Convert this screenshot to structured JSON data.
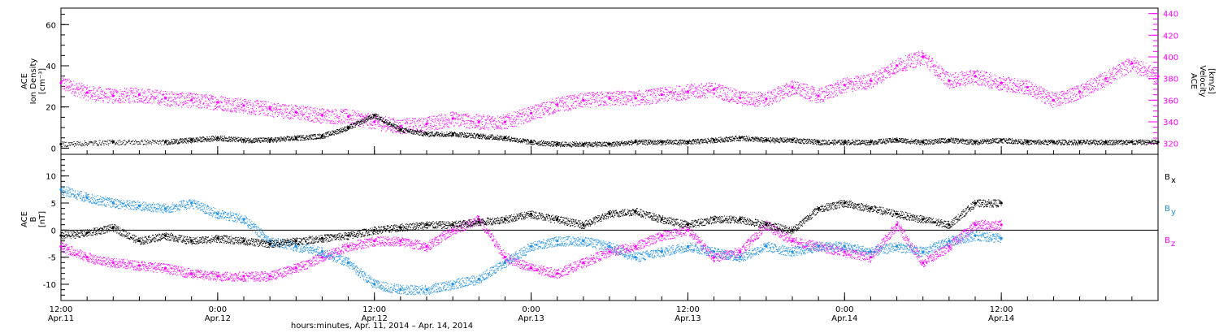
{
  "chart_data": [
    {
      "type": "scatter",
      "panel": "top",
      "ylabel_lines": [
        "ACE",
        "Ion Density",
        "[cm⁻³]"
      ],
      "ylabel2_lines": [
        "ACE",
        "Velocity",
        "[km/s]"
      ],
      "xlim": [
        0,
        84
      ],
      "ylim": [
        -3,
        68
      ],
      "y2lim": [
        310,
        445
      ],
      "yticks": [
        "0",
        "20",
        "40",
        "60"
      ],
      "y2ticks": [
        "320",
        "340",
        "360",
        "380",
        "400",
        "420",
        "440"
      ],
      "series": [
        {
          "color": "#000000",
          "axis": "left",
          "x": [
            0,
            4,
            8,
            10,
            12,
            14,
            16,
            18,
            20,
            22,
            24,
            26,
            28,
            30,
            32,
            34,
            36,
            38,
            40,
            42,
            44,
            46,
            48,
            50,
            52,
            54,
            56,
            58,
            60,
            62,
            64,
            66,
            68,
            70,
            72,
            74,
            76,
            78,
            80,
            82,
            84
          ],
          "values": [
            2,
            3,
            3,
            4,
            5,
            4,
            4,
            5,
            6,
            10,
            16,
            9,
            7,
            7,
            6,
            5,
            3,
            2,
            2,
            2,
            3,
            3,
            3,
            4,
            5,
            4,
            4,
            3,
            3,
            3,
            4,
            3,
            4,
            3,
            4,
            3,
            3,
            3,
            3,
            3,
            3
          ]
        },
        {
          "color": "#ff00ff",
          "axis": "right",
          "x": [
            0,
            2,
            4,
            6,
            8,
            10,
            12,
            14,
            16,
            18,
            20,
            22,
            24,
            26,
            28,
            30,
            32,
            34,
            36,
            38,
            40,
            42,
            44,
            46,
            48,
            50,
            52,
            54,
            56,
            58,
            60,
            62,
            64,
            66,
            68,
            70,
            72,
            74,
            76,
            78,
            80,
            82,
            84
          ],
          "values": [
            376,
            367,
            364,
            365,
            362,
            360,
            358,
            355,
            352,
            349,
            346,
            345,
            340,
            336,
            338,
            343,
            340,
            340,
            348,
            356,
            360,
            362,
            362,
            365,
            368,
            370,
            362,
            361,
            372,
            364,
            374,
            378,
            392,
            400,
            378,
            382,
            376,
            372,
            360,
            368,
            380,
            394,
            382
          ]
        }
      ]
    },
    {
      "type": "scatter",
      "panel": "bottom",
      "ylabel_lines": [
        "ACE",
        "B",
        "[nT]"
      ],
      "xlabel": "hours:minutes, Apr. 11, 2014 – Apr. 14, 2014",
      "xlim": [
        0,
        84
      ],
      "ylim": [
        -13,
        14
      ],
      "yticks": [
        "-10",
        "-5",
        "0",
        "5",
        "10"
      ],
      "xticks": [
        {
          "x": 0,
          "time": "12:00",
          "date": "Apr.11"
        },
        {
          "x": 12,
          "time": "0:00",
          "date": "Apr.12"
        },
        {
          "x": 24,
          "time": "12:00",
          "date": "Apr.12"
        },
        {
          "x": 36,
          "time": "0:00",
          "date": "Apr.13"
        },
        {
          "x": 48,
          "time": "12:00",
          "date": "Apr.13"
        },
        {
          "x": 60,
          "time": "0:00",
          "date": "Apr.14"
        },
        {
          "x": 72,
          "time": "12:00",
          "date": "Apr.14"
        }
      ],
      "legend": [
        {
          "name": "B",
          "sub": "x",
          "color": "#000000"
        },
        {
          "name": "B",
          "sub": "y",
          "color": "#1e90e8"
        },
        {
          "name": "B",
          "sub": "z",
          "color": "#ff00ff"
        }
      ],
      "series": [
        {
          "color": "#000000",
          "x": [
            0,
            2,
            4,
            6,
            8,
            10,
            12,
            14,
            16,
            18,
            20,
            22,
            24,
            26,
            28,
            30,
            32,
            34,
            36,
            38,
            40,
            42,
            44,
            46,
            48,
            50,
            52,
            54,
            56,
            58,
            60,
            62,
            64,
            66,
            68,
            70,
            72
          ],
          "values": [
            -1,
            -0.5,
            0.5,
            -2,
            -1,
            -2,
            -1.5,
            -2,
            -2.5,
            -2,
            -1.5,
            -1,
            0,
            0.5,
            1,
            1,
            1.5,
            2,
            3,
            2,
            1,
            3,
            3.5,
            2,
            1,
            2,
            2,
            1,
            0,
            4,
            5,
            4,
            3,
            2,
            1,
            5,
            5
          ]
        },
        {
          "color": "#1e90e8",
          "x": [
            0,
            2,
            4,
            6,
            8,
            10,
            12,
            14,
            16,
            18,
            20,
            22,
            24,
            26,
            28,
            30,
            32,
            34,
            36,
            38,
            40,
            42,
            44,
            46,
            48,
            50,
            52,
            54,
            56,
            58,
            60,
            62,
            64,
            66,
            68,
            70,
            72
          ],
          "values": [
            7.5,
            6,
            5,
            4.5,
            4,
            5,
            3,
            2,
            -2,
            -3,
            -4,
            -6,
            -10,
            -11,
            -11,
            -10,
            -9,
            -6,
            -3,
            -2,
            -2,
            -3,
            -5,
            -4,
            -3,
            -4,
            -5,
            -3,
            -4,
            -3,
            -3,
            -4,
            -3,
            -4,
            -2,
            -1,
            -1.5
          ]
        },
        {
          "color": "#ff00ff",
          "x": [
            0,
            2,
            4,
            6,
            8,
            10,
            12,
            14,
            16,
            18,
            20,
            22,
            24,
            26,
            28,
            30,
            32,
            34,
            36,
            38,
            40,
            42,
            44,
            46,
            48,
            50,
            52,
            54,
            56,
            58,
            60,
            62,
            64,
            66,
            68,
            70,
            72
          ],
          "values": [
            -3,
            -5,
            -6,
            -6.5,
            -7,
            -8,
            -8.5,
            -8.5,
            -8.5,
            -7,
            -5,
            -3,
            -2,
            -2,
            -3,
            0,
            2,
            -5,
            -7,
            -8,
            -6,
            -4,
            -3,
            -1,
            0,
            -5,
            -4,
            1,
            -2,
            -3,
            -4,
            -5,
            1,
            -6,
            -3,
            1,
            1
          ]
        }
      ]
    }
  ]
}
